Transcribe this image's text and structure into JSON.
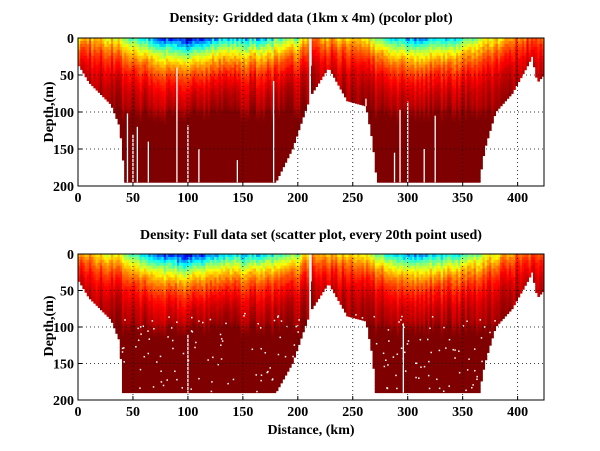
{
  "chart_data": [
    {
      "type": "heatmap",
      "title": "Density: Gridded data (1km x 4m) (pcolor plot)",
      "xlabel": "",
      "ylabel": "Depth,(m)",
      "xlim": [
        0,
        424
      ],
      "ylim": [
        0,
        200
      ],
      "y_reversed": true,
      "xticks": [
        "0",
        "50",
        "100",
        "150",
        "200",
        "250",
        "300",
        "350",
        "400"
      ],
      "yticks": [
        "0",
        "50",
        "100",
        "150",
        "200"
      ],
      "grid": true,
      "colormap": "jet",
      "bottom_depth_profile": [
        [
          0,
          35
        ],
        [
          10,
          60
        ],
        [
          20,
          75
        ],
        [
          30,
          90
        ],
        [
          38,
          120
        ],
        [
          43,
          195
        ],
        [
          180,
          195
        ],
        [
          195,
          150
        ],
        [
          210,
          85
        ],
        [
          211,
          0
        ],
        [
          213,
          75
        ],
        [
          228,
          40
        ],
        [
          245,
          85
        ],
        [
          262,
          92
        ],
        [
          268,
          140
        ],
        [
          272,
          195
        ],
        [
          365,
          195
        ],
        [
          370,
          150
        ],
        [
          380,
          100
        ],
        [
          395,
          75
        ],
        [
          410,
          35
        ],
        [
          413,
          25
        ],
        [
          418,
          60
        ],
        [
          424,
          50
        ]
      ],
      "surface_value_profile": [
        [
          0,
          0.7
        ],
        [
          30,
          0.6
        ],
        [
          60,
          0.35
        ],
        [
          90,
          0.1
        ],
        [
          100,
          0.05
        ],
        [
          130,
          0.25
        ],
        [
          170,
          0.3
        ],
        [
          200,
          0.5
        ],
        [
          215,
          0.7
        ],
        [
          260,
          0.6
        ],
        [
          290,
          0.3
        ],
        [
          310,
          0.2
        ],
        [
          340,
          0.3
        ],
        [
          370,
          0.55
        ],
        [
          400,
          0.75
        ],
        [
          424,
          0.8
        ]
      ],
      "data_gaps": [
        [
          212,
          0
        ],
        [
          90,
          40
        ],
        [
          178,
          58
        ],
        [
          100,
          118
        ],
        [
          45,
          102
        ],
        [
          50,
          130
        ],
        [
          54,
          120
        ],
        [
          64,
          140
        ],
        [
          110,
          150
        ],
        [
          145,
          165
        ],
        [
          300,
          86
        ],
        [
          293,
          97
        ],
        [
          325,
          105
        ],
        [
          315,
          150
        ],
        [
          262,
          82
        ],
        [
          288,
          155
        ]
      ],
      "speckle": false
    },
    {
      "type": "heatmap",
      "title": "Density: Full data set (scatter plot, every 20th point used)",
      "xlabel": "Distance, (km)",
      "ylabel": "Depth,(m)",
      "xlim": [
        0,
        424
      ],
      "ylim": [
        0,
        200
      ],
      "y_reversed": true,
      "xticks": [
        "0",
        "50",
        "100",
        "150",
        "200",
        "250",
        "300",
        "350",
        "400"
      ],
      "yticks": [
        "0",
        "50",
        "100",
        "150",
        "200"
      ],
      "grid": true,
      "colormap": "jet",
      "bottom_depth_profile": [
        [
          0,
          35
        ],
        [
          10,
          60
        ],
        [
          20,
          75
        ],
        [
          30,
          90
        ],
        [
          38,
          120
        ],
        [
          41,
          190
        ],
        [
          180,
          190
        ],
        [
          195,
          150
        ],
        [
          210,
          85
        ],
        [
          211,
          0
        ],
        [
          213,
          75
        ],
        [
          228,
          40
        ],
        [
          245,
          85
        ],
        [
          262,
          92
        ],
        [
          268,
          140
        ],
        [
          271,
          190
        ],
        [
          365,
          190
        ],
        [
          370,
          150
        ],
        [
          380,
          100
        ],
        [
          395,
          75
        ],
        [
          410,
          35
        ],
        [
          413,
          25
        ],
        [
          418,
          60
        ],
        [
          424,
          50
        ]
      ],
      "surface_value_profile": [
        [
          0,
          0.7
        ],
        [
          30,
          0.6
        ],
        [
          60,
          0.35
        ],
        [
          90,
          0.1
        ],
        [
          100,
          0.05
        ],
        [
          130,
          0.25
        ],
        [
          170,
          0.3
        ],
        [
          200,
          0.5
        ],
        [
          215,
          0.7
        ],
        [
          260,
          0.6
        ],
        [
          290,
          0.3
        ],
        [
          310,
          0.2
        ],
        [
          340,
          0.3
        ],
        [
          370,
          0.55
        ],
        [
          400,
          0.75
        ],
        [
          424,
          0.8
        ]
      ],
      "data_gaps": [
        [
          212,
          0
        ],
        [
          100,
          110
        ],
        [
          296,
          95
        ]
      ],
      "speckle": true
    }
  ]
}
